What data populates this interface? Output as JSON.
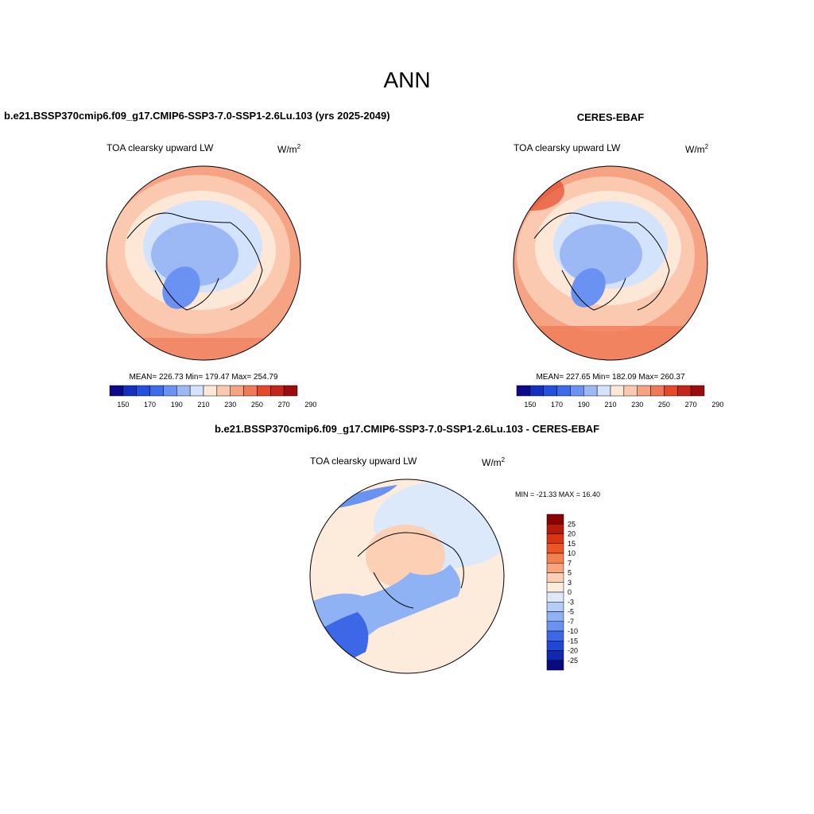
{
  "title": "ANN",
  "panels": [
    {
      "title": "b.e21.BSSP370cmip6.f09_g17.CMIP6-SSP3-7.0-SSP1-2.6Lu.103 (yrs 2025-2049)",
      "variable": "TOA clearsky upward LW",
      "units": "W/m",
      "units_exponent": "2",
      "stats": "MEAN= 226.73  Min= 179.47  Max= 254.79",
      "colorbar": {
        "colors": [
          "#0b0b8a",
          "#1530c0",
          "#2550dc",
          "#3a6cee",
          "#6a92f3",
          "#9cb9f6",
          "#d2e3fb",
          "#fde8d8",
          "#fbc8b0",
          "#f6a383",
          "#f07a58",
          "#e24a2a",
          "#c4261a",
          "#9b0d0d"
        ],
        "labels": [
          "150",
          "170",
          "190",
          "210",
          "230",
          "250",
          "270",
          "290"
        ]
      }
    },
    {
      "title": "CERES-EBAF",
      "variable": "TOA clearsky upward LW",
      "units": "W/m",
      "units_exponent": "2",
      "stats": "MEAN= 227.65  Min= 182.09  Max= 260.37",
      "colorbar": {
        "colors": [
          "#0b0b8a",
          "#1530c0",
          "#2550dc",
          "#3a6cee",
          "#6a92f3",
          "#9cb9f6",
          "#d2e3fb",
          "#fde8d8",
          "#fbc8b0",
          "#f6a383",
          "#f07a58",
          "#e24a2a",
          "#c4261a",
          "#9b0d0d"
        ],
        "labels": [
          "150",
          "170",
          "190",
          "210",
          "230",
          "250",
          "270",
          "290"
        ]
      }
    }
  ],
  "difference": {
    "title": "b.e21.BSSP370cmip6.f09_g17.CMIP6-SSP3-7.0-SSP1-2.6Lu.103 - CERES-EBAF",
    "variable": "TOA clearsky upward LW",
    "units": "W/m",
    "units_exponent": "2",
    "stats": "MIN = -21.33 MAX =  16.40",
    "colorbar": {
      "colors": [
        "#8b0000",
        "#b51a0a",
        "#d93512",
        "#ee5525",
        "#f4804f",
        "#f8a57e",
        "#fcd0b5",
        "#fdecdc",
        "#dbe9fb",
        "#b3cdf8",
        "#8fb2f4",
        "#6a92f0",
        "#3c68e8",
        "#1f46d4",
        "#0f28b0",
        "#0a0a80"
      ],
      "labels": [
        "25",
        "20",
        "15",
        "10",
        "7",
        "5",
        "3",
        "0",
        "-3",
        "-5",
        "-7",
        "-10",
        "-15",
        "-20",
        "-25"
      ]
    }
  }
}
